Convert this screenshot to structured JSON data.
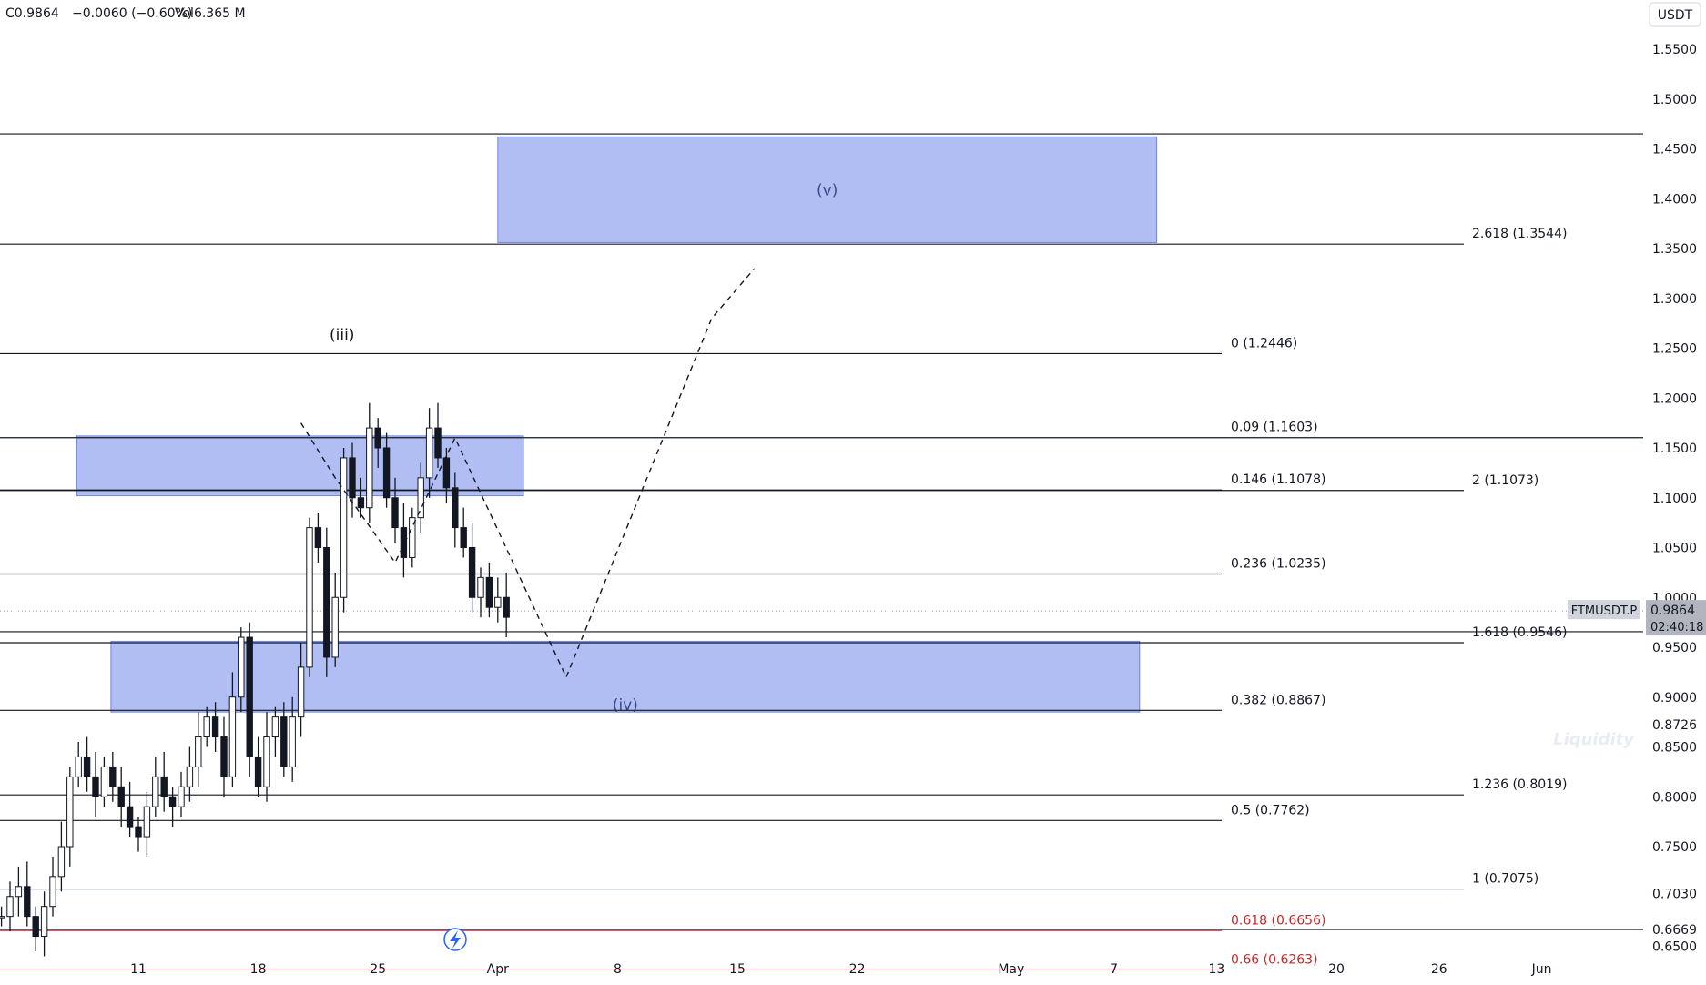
{
  "header": {
    "close": "C0.9864",
    "change": "−0.0060 (−0.60%)",
    "volume": "Vol6.365 M"
  },
  "currency": "USDT",
  "y_ticks": [
    "1.5500",
    "1.5000",
    "1.4500",
    "1.4000",
    "1.3500",
    "1.3000",
    "1.2500",
    "1.2000",
    "1.1500",
    "1.1000",
    "1.0500",
    "1.0000",
    "0.9500",
    "0.9000",
    "0.8500",
    "0.8000",
    "0.7500"
  ],
  "extra_price_labels": [
    {
      "label": "0.8726",
      "price": 0.8726
    },
    {
      "label": "0.7030",
      "price": 0.703
    },
    {
      "label": "0.6669",
      "price": 0.6669
    },
    {
      "label": "0.6500",
      "price": 0.65
    }
  ],
  "x_ticks": [
    {
      "label": "11",
      "day": 11
    },
    {
      "label": "18",
      "day": 18
    },
    {
      "label": "25",
      "day": 25
    },
    {
      "label": "Apr",
      "day": 32
    },
    {
      "label": "8",
      "day": 39
    },
    {
      "label": "15",
      "day": 46
    },
    {
      "label": "22",
      "day": 53
    },
    {
      "label": "May",
      "day": 62
    },
    {
      "label": "7",
      "day": 68
    },
    {
      "label": "13",
      "day": 74
    },
    {
      "label": "20",
      "day": 81
    },
    {
      "label": "26",
      "day": 87
    },
    {
      "label": "Jun",
      "day": 93
    }
  ],
  "last_price": {
    "symbol": "FTMUSDT.P",
    "price": "0.9864",
    "countdown": "02:40:18",
    "value": 0.9864
  },
  "watermark": "Liquidity",
  "colors": {
    "candle": "#131722",
    "zone": "#8fa3ee",
    "grid_line": "#131722",
    "red_line": "#f23645",
    "label_bg": "#d1d4dc"
  },
  "chart_data": {
    "type": "candlestick",
    "symbol": "FTMUSDT.P",
    "x_axis": "date (day number counted from Mar 1)",
    "ylim": [
      0.64,
      1.57
    ],
    "xlim": [
      3,
      98
    ],
    "close_series": [
      [
        3.0,
        0.68
      ],
      [
        3.5,
        0.7
      ],
      [
        4.0,
        0.71
      ],
      [
        4.5,
        0.68
      ],
      [
        5.0,
        0.66
      ],
      [
        5.5,
        0.69
      ],
      [
        6.0,
        0.72
      ],
      [
        6.5,
        0.75
      ],
      [
        7.0,
        0.82
      ],
      [
        7.5,
        0.84
      ],
      [
        8.0,
        0.82
      ],
      [
        8.5,
        0.8
      ],
      [
        9.0,
        0.83
      ],
      [
        9.5,
        0.81
      ],
      [
        10.0,
        0.79
      ],
      [
        10.5,
        0.77
      ],
      [
        11.0,
        0.76
      ],
      [
        11.5,
        0.79
      ],
      [
        12.0,
        0.82
      ],
      [
        12.5,
        0.8
      ],
      [
        13.0,
        0.79
      ],
      [
        13.5,
        0.81
      ],
      [
        14.0,
        0.83
      ],
      [
        14.5,
        0.86
      ],
      [
        15.0,
        0.88
      ],
      [
        15.5,
        0.86
      ],
      [
        16.0,
        0.82
      ],
      [
        16.5,
        0.9
      ],
      [
        17.0,
        0.96
      ],
      [
        17.5,
        0.84
      ],
      [
        18.0,
        0.81
      ],
      [
        18.5,
        0.86
      ],
      [
        19.0,
        0.88
      ],
      [
        19.5,
        0.83
      ],
      [
        20.0,
        0.88
      ],
      [
        20.5,
        0.93
      ],
      [
        21.0,
        1.07
      ],
      [
        21.5,
        1.05
      ],
      [
        22.0,
        0.94
      ],
      [
        22.5,
        1.0
      ],
      [
        23.0,
        1.14
      ],
      [
        23.5,
        1.1
      ],
      [
        24.0,
        1.09
      ],
      [
        24.5,
        1.17
      ],
      [
        25.0,
        1.15
      ],
      [
        25.5,
        1.1
      ],
      [
        26.0,
        1.07
      ],
      [
        26.5,
        1.04
      ],
      [
        27.0,
        1.08
      ],
      [
        27.5,
        1.12
      ],
      [
        28.0,
        1.17
      ],
      [
        28.5,
        1.14
      ],
      [
        29.0,
        1.11
      ],
      [
        29.5,
        1.07
      ],
      [
        30.0,
        1.05
      ],
      [
        30.5,
        1.0
      ],
      [
        31.0,
        1.02
      ],
      [
        31.5,
        0.99
      ],
      [
        32.0,
        1.0
      ],
      [
        32.5,
        0.98
      ]
    ],
    "price_lines": [
      {
        "price": 1.465,
        "x_end": "full",
        "label": ""
      },
      {
        "price": 1.3544,
        "x_end": "right",
        "label": "2.618 (1.3544)"
      },
      {
        "price": 1.2446,
        "x_end": "mid",
        "label": "0 (1.2446)"
      },
      {
        "price": 1.1603,
        "x_end": "full",
        "label": "0.09 (1.1603)"
      },
      {
        "price": 1.1078,
        "x_end": "mid",
        "label": "0.146 (1.1078)"
      },
      {
        "price": 1.1073,
        "x_end": "right",
        "label": "2 (1.1073)"
      },
      {
        "price": 1.0235,
        "x_end": "mid",
        "label": "0.236 (1.0235)"
      },
      {
        "price": 0.9656,
        "x_end": "full",
        "label": ""
      },
      {
        "price": 0.9546,
        "x_end": "right",
        "label": "1.618 (0.9546)"
      },
      {
        "price": 0.8867,
        "x_end": "mid",
        "label": "0.382 (0.8867)"
      },
      {
        "price": 0.8019,
        "x_end": "right",
        "label": "1.236 (0.8019)"
      },
      {
        "price": 0.7762,
        "x_end": "mid",
        "label": "0.5 (0.7762)"
      },
      {
        "price": 0.7075,
        "x_end": "right",
        "label": "1 (0.7075)"
      },
      {
        "price": 0.6656,
        "x_end": "mid",
        "label": "0.618 (0.6656)",
        "color": "red"
      },
      {
        "price": 0.6669,
        "x_end": "full",
        "label": ""
      },
      {
        "price": 0.6263,
        "x_end": "mid",
        "label": "0.66 (0.6263)",
        "color": "red"
      }
    ],
    "zones": [
      {
        "x0": 32.0,
        "x1": 70.5,
        "top": 1.462,
        "bottom": 1.356,
        "label": "(v)"
      },
      {
        "x0": 7.4,
        "x1": 33.5,
        "top": 1.162,
        "bottom": 1.102,
        "label": ""
      },
      {
        "x0": 9.4,
        "x1": 69.5,
        "top": 0.956,
        "bottom": 0.885,
        "label": "(iv)"
      }
    ],
    "wave_labels": [
      {
        "label": "(iii)",
        "x": 22.9,
        "price": 1.258
      }
    ],
    "projection": [
      [
        20.5,
        1.175
      ],
      [
        22.5,
        1.12
      ],
      [
        26.0,
        1.035
      ],
      [
        29.5,
        1.16
      ],
      [
        36.0,
        0.92
      ],
      [
        44.5,
        1.28
      ],
      [
        47.0,
        1.33
      ]
    ]
  }
}
